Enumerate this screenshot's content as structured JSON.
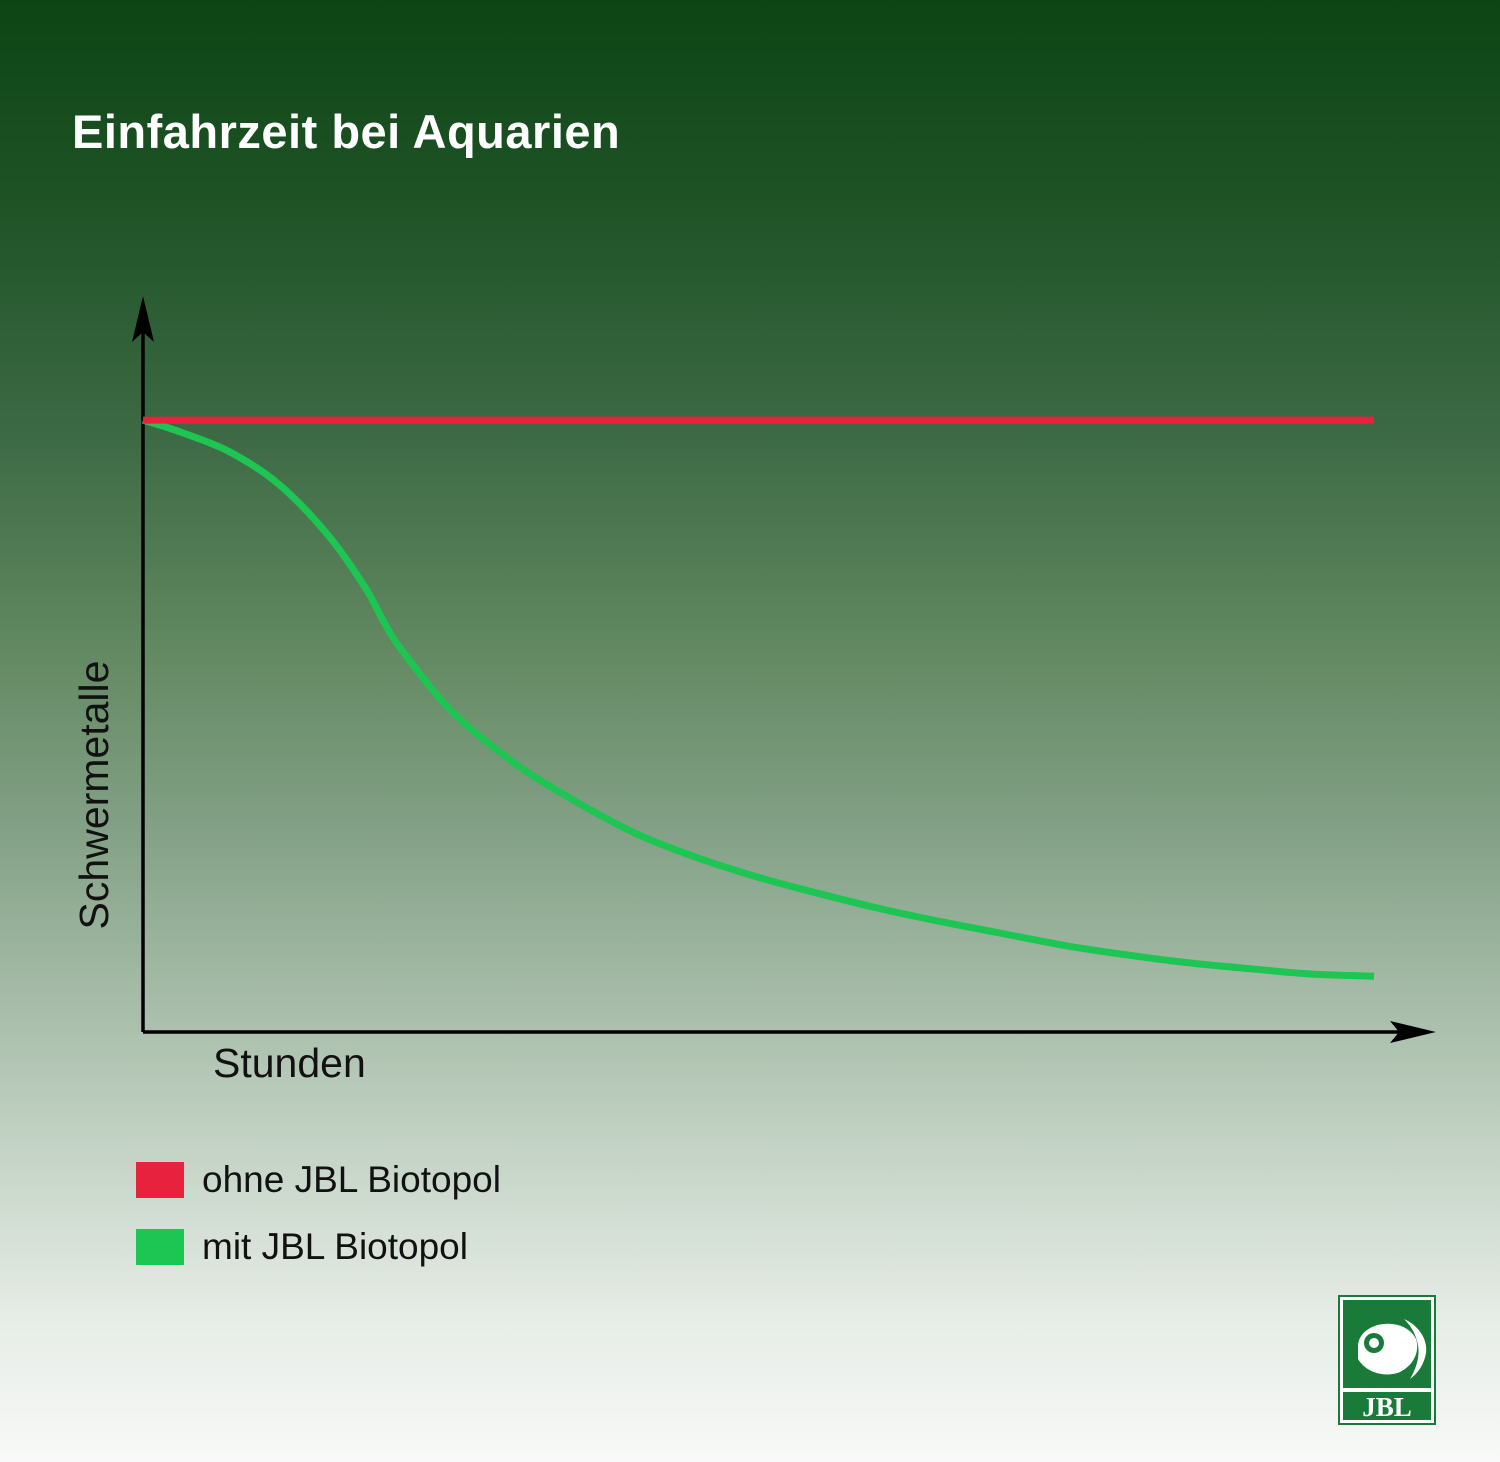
{
  "chart_data": {
    "type": "line",
    "title": "Einfahrzeit bei Aquarien",
    "xlabel": "Stunden",
    "ylabel": "Schwermetalle",
    "xlim": [
      0,
      100
    ],
    "ylim": [
      0,
      100
    ],
    "grid": false,
    "legend_position": "bottom-left",
    "series": [
      {
        "name": "ohne JBL Biotopol",
        "color": "#e8213f",
        "x": [
          0,
          100
        ],
        "y": [
          93,
          93
        ]
      },
      {
        "name": "mit JBL Biotopol",
        "color": "#1dc552",
        "x": [
          0,
          3,
          7,
          11,
          15,
          18,
          19.6,
          21,
          25,
          30,
          35,
          40,
          45,
          50,
          55,
          60,
          65,
          70,
          75,
          80,
          85,
          90,
          95,
          100
        ],
        "y": [
          93,
          91.2,
          88.2,
          83.3,
          75.6,
          67.7,
          62.2,
          58.1,
          48.9,
          41.1,
          35.2,
          30.2,
          26.5,
          23.5,
          21.0,
          18.7,
          16.7,
          14.9,
          13.1,
          11.7,
          10.5,
          9.6,
          8.8,
          8.5
        ]
      }
    ]
  },
  "brand": {
    "logo_text": "JBL"
  }
}
